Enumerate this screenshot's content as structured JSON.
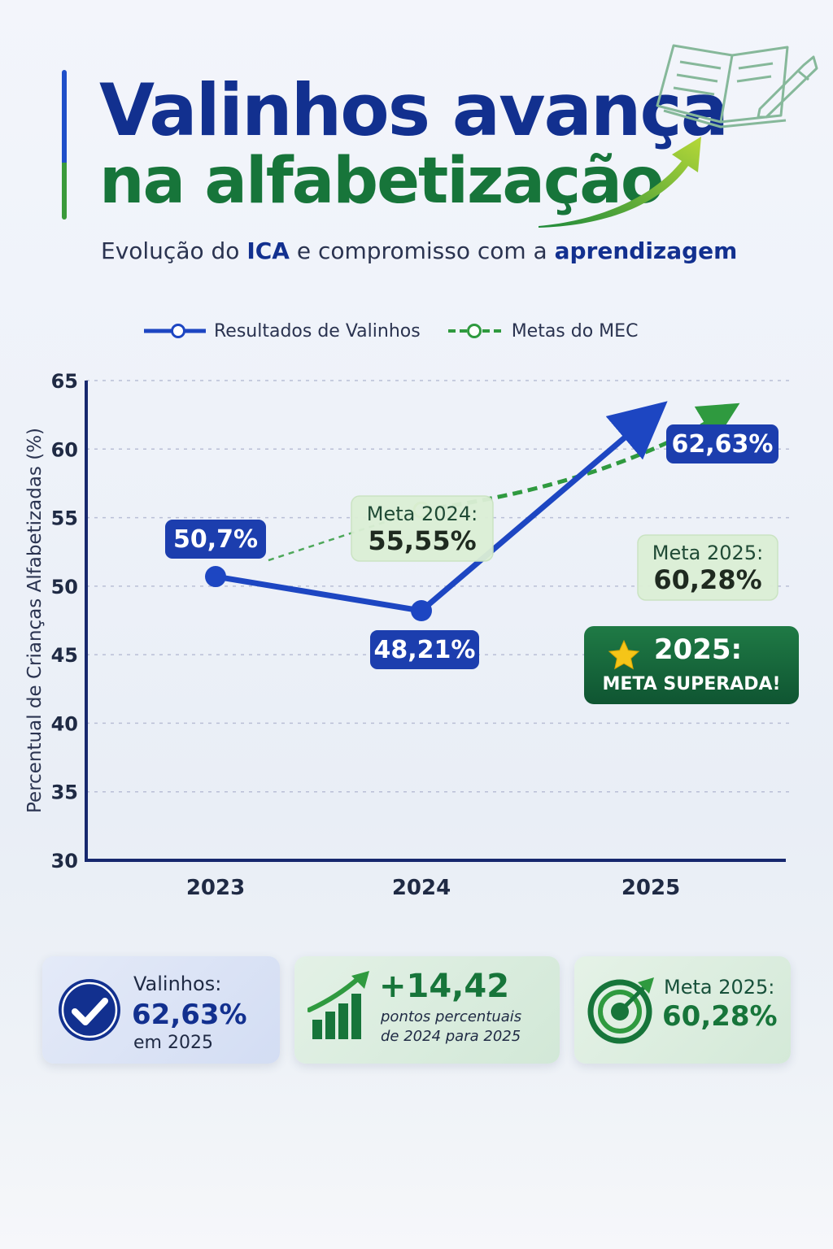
{
  "header": {
    "title_line1": "Valinhos avança",
    "title_line2": "na alfabetização",
    "subtitle_pre": "Evolução do ",
    "subtitle_bold1": "ICA",
    "subtitle_mid": " e compromisso com a ",
    "subtitle_bold2": "aprendizagem"
  },
  "chart_data": {
    "type": "line",
    "categories": [
      "2023",
      "2024",
      "2025"
    ],
    "series": [
      {
        "name": "Resultados de Valinhos",
        "values": [
          50.7,
          48.21,
          62.63
        ],
        "labels": [
          "50,7%",
          "48,21%",
          "62,63%"
        ],
        "color": "#1d46c2"
      },
      {
        "name": "Metas do MEC",
        "values": [
          null,
          55.55,
          60.28
        ],
        "color": "#2f9a3f"
      }
    ],
    "annotations": [
      {
        "title": "Meta 2024:",
        "value": "55,55%"
      },
      {
        "title": "Meta 2025:",
        "value": "60,28%"
      }
    ],
    "callout": {
      "line1": "2025:",
      "line2": "META SUPERADA!"
    },
    "title": "",
    "xlabel": "",
    "ylabel": "Percentual de Crianças Alfabetizadas (%)",
    "ylim": [
      30,
      65
    ],
    "yticks": [
      "30",
      "35",
      "40",
      "45",
      "50",
      "55",
      "60",
      "65"
    ],
    "grid": true,
    "legend_position": "top"
  },
  "cards": [
    {
      "icon": "check-circle-icon",
      "label": "Valinhos:",
      "value": "62,63%",
      "sub": "em 2025"
    },
    {
      "icon": "growth-bars-icon",
      "value": "+14,42",
      "sub1": "pontos percentuais",
      "sub2": "de 2024 para 2025"
    },
    {
      "icon": "target-icon",
      "label": "Meta 2025:",
      "value": "60,28%"
    }
  ],
  "colors": {
    "primary_blue": "#12308f",
    "line_blue": "#1d46c2",
    "primary_green": "#17753a",
    "meta_green": "#2f9a3f"
  }
}
